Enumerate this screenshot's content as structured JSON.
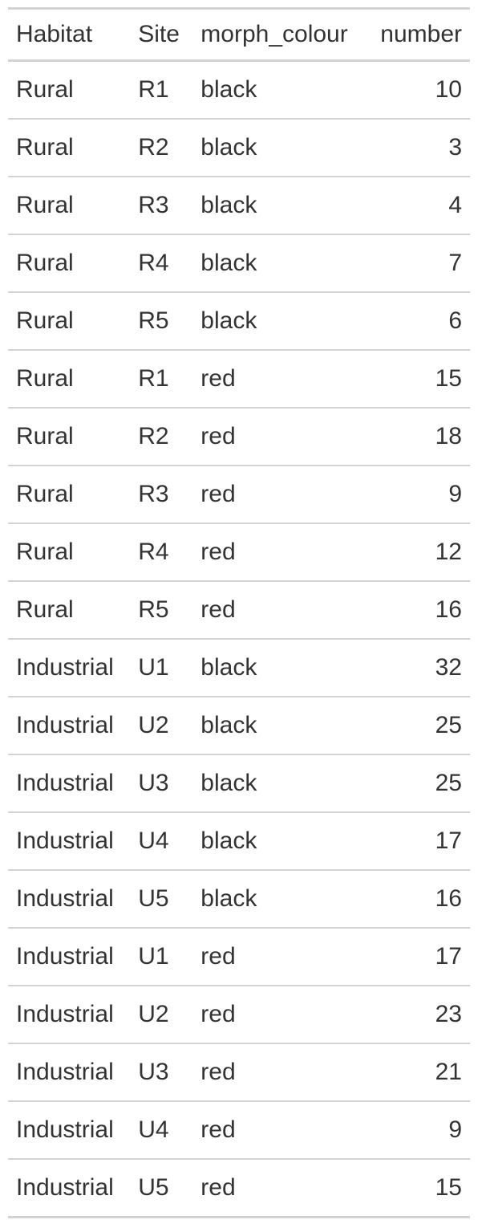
{
  "table": {
    "columns": [
      "Habitat",
      "Site",
      "morph_colour",
      "number"
    ],
    "rows": [
      [
        "Rural",
        "R1",
        "black",
        "10"
      ],
      [
        "Rural",
        "R2",
        "black",
        "3"
      ],
      [
        "Rural",
        "R3",
        "black",
        "4"
      ],
      [
        "Rural",
        "R4",
        "black",
        "7"
      ],
      [
        "Rural",
        "R5",
        "black",
        "6"
      ],
      [
        "Rural",
        "R1",
        "red",
        "15"
      ],
      [
        "Rural",
        "R2",
        "red",
        "18"
      ],
      [
        "Rural",
        "R3",
        "red",
        "9"
      ],
      [
        "Rural",
        "R4",
        "red",
        "12"
      ],
      [
        "Rural",
        "R5",
        "red",
        "16"
      ],
      [
        "Industrial",
        "U1",
        "black",
        "32"
      ],
      [
        "Industrial",
        "U2",
        "black",
        "25"
      ],
      [
        "Industrial",
        "U3",
        "black",
        "25"
      ],
      [
        "Industrial",
        "U4",
        "black",
        "17"
      ],
      [
        "Industrial",
        "U5",
        "black",
        "16"
      ],
      [
        "Industrial",
        "U1",
        "red",
        "17"
      ],
      [
        "Industrial",
        "U2",
        "red",
        "23"
      ],
      [
        "Industrial",
        "U3",
        "red",
        "21"
      ],
      [
        "Industrial",
        "U4",
        "red",
        "9"
      ],
      [
        "Industrial",
        "U5",
        "red",
        "15"
      ]
    ]
  },
  "colors": {
    "text": "#333333",
    "rule": "#d3d3d3",
    "background": "#ffffff"
  }
}
